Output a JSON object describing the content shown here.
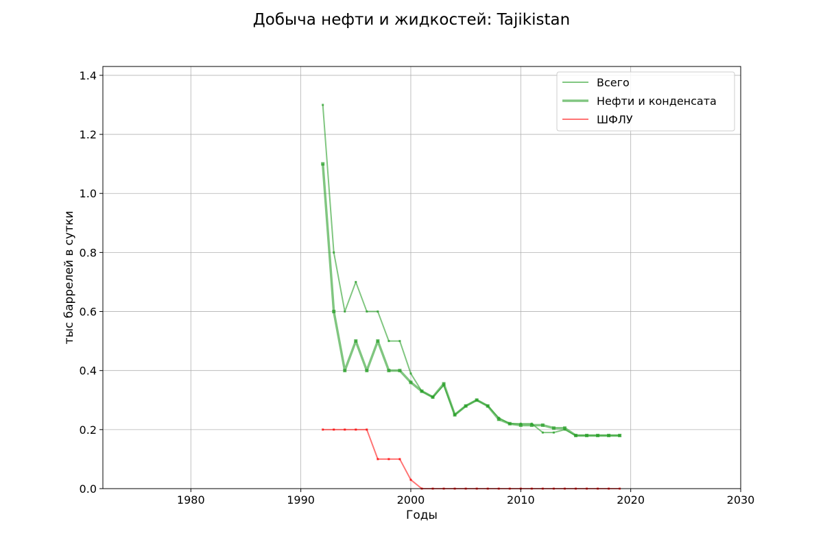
{
  "chart_data": {
    "type": "line",
    "title": "Добыча нефти и жидкостей: Tajikistan",
    "xlabel": "Годы",
    "ylabel": "тыс баррелей в сутки",
    "xlim": [
      1972,
      2030
    ],
    "ylim": [
      0,
      1.43
    ],
    "xticks": [
      1980,
      1990,
      2000,
      2010,
      2020,
      2030
    ],
    "yticks": [
      "0.0",
      "0.2",
      "0.4",
      "0.6",
      "0.8",
      "1.0",
      "1.2",
      "1.4"
    ],
    "grid": true,
    "legend_position": "top-right",
    "x": [
      1992,
      1993,
      1994,
      1995,
      1996,
      1997,
      1998,
      1999,
      2000,
      2001,
      2002,
      2003,
      2004,
      2005,
      2006,
      2007,
      2008,
      2009,
      2010,
      2011,
      2012,
      2013,
      2014,
      2015,
      2016,
      2017,
      2018,
      2019
    ],
    "series": [
      {
        "name": "Всего",
        "color": "#2ca02c",
        "values": [
          1.3,
          0.8,
          0.6,
          0.7,
          0.6,
          0.6,
          0.5,
          0.5,
          0.39,
          0.33,
          0.31,
          0.35,
          0.25,
          0.28,
          0.3,
          0.28,
          0.24,
          0.22,
          0.22,
          0.22,
          0.19,
          0.19,
          0.2,
          0.18,
          0.18,
          0.18,
          0.18,
          0.18
        ]
      },
      {
        "name": "Нефти и конденсата",
        "color": "#2ca02c",
        "values": [
          1.1,
          0.6,
          0.4,
          0.5,
          0.4,
          0.5,
          0.4,
          0.4,
          0.36,
          0.33,
          0.31,
          0.355,
          0.25,
          0.28,
          0.3,
          0.28,
          0.235,
          0.22,
          0.215,
          0.215,
          0.215,
          0.205,
          0.205,
          0.18,
          0.18,
          0.18,
          0.18,
          0.18
        ]
      },
      {
        "name": "ШФЛУ",
        "color": "#ff0000",
        "values": [
          0.2,
          0.2,
          0.2,
          0.2,
          0.2,
          0.1,
          0.1,
          0.1,
          0.03,
          0,
          0,
          0,
          0,
          0,
          0,
          0,
          0,
          0,
          0,
          0,
          0,
          0,
          0,
          0,
          0,
          0,
          0,
          0
        ]
      }
    ]
  }
}
